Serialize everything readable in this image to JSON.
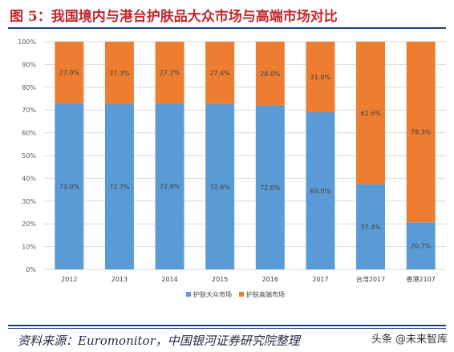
{
  "title": "图 5：我国境内与港台护肤品大众市场与高端市场对比",
  "source": "资料来源：Euromonitor，中国银河证券研究院整理",
  "watermark": "头条 @未来智库",
  "colors": {
    "mass": "#5b9bd5",
    "premium": "#ed7d31",
    "title": "#c0272d",
    "rule": "#1f3d7a"
  },
  "chart_data": {
    "type": "bar",
    "stacked": true,
    "categories": [
      "2012",
      "2013",
      "2014",
      "2015",
      "2016",
      "2017",
      "台湾2017",
      "香港2107"
    ],
    "series": [
      {
        "name": "护肤大众市场",
        "values": [
          73.0,
          72.7,
          72.8,
          72.6,
          72.0,
          69.0,
          37.4,
          20.7
        ],
        "labels": [
          "73.0%",
          "72.7%",
          "72.8%",
          "72.6%",
          "72.0%",
          "69.0%",
          "37.4%",
          "20.7%"
        ]
      },
      {
        "name": "护肤高端市场",
        "values": [
          27.0,
          27.3,
          27.2,
          27.4,
          28.0,
          31.0,
          62.6,
          79.3
        ],
        "labels": [
          "27.0%",
          "27.3%",
          "27.2%",
          "27.4%",
          "28.0%",
          "31.0%",
          "62.6%",
          "79.3%"
        ]
      }
    ],
    "yticks": [
      "0%",
      "10%",
      "20%",
      "30%",
      "40%",
      "50%",
      "60%",
      "70%",
      "80%",
      "90%",
      "100%"
    ],
    "ylim": [
      0,
      100
    ],
    "grid": true,
    "legend": "bottom-center"
  }
}
